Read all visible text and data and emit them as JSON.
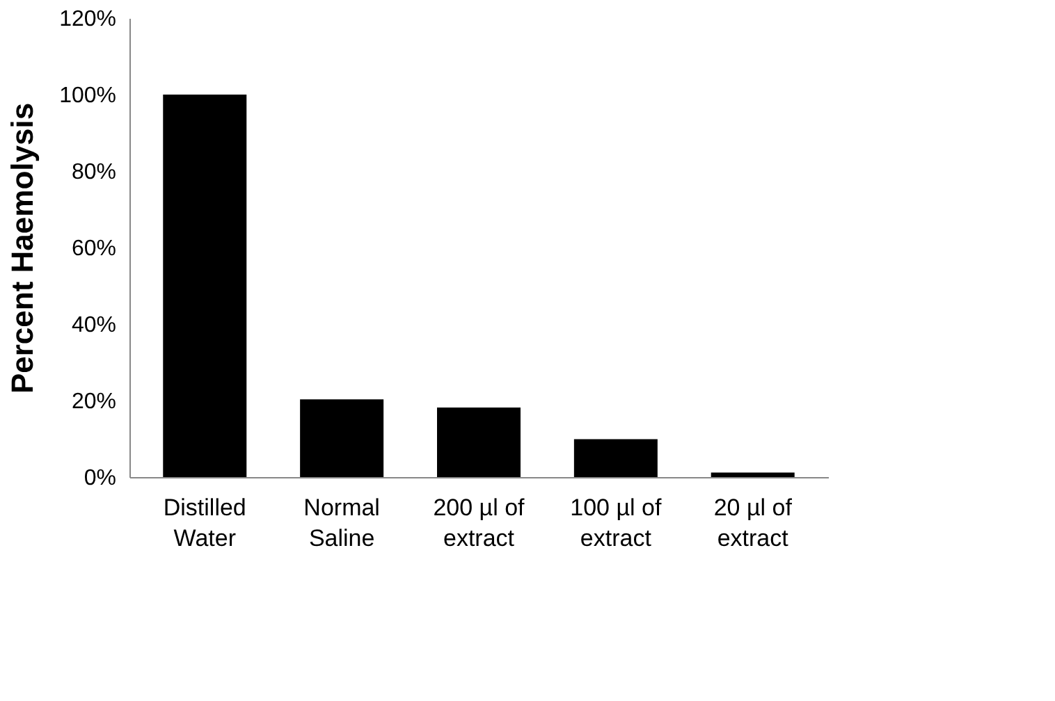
{
  "chart_data": {
    "type": "bar",
    "ylabel": "Percent Haemolysis",
    "categories": [
      "Distilled Water",
      "Normal Saline",
      "200 µl of extract",
      "100 µl of extract",
      "20 µl of extract"
    ],
    "values": [
      100,
      20.3,
      18.2,
      9.9,
      1.2
    ],
    "color": "#000000",
    "ylim": [
      0,
      120
    ],
    "yticks": [
      {
        "value": 0,
        "label": "0%"
      },
      {
        "value": 20,
        "label": "20%"
      },
      {
        "value": 40,
        "label": "40%"
      },
      {
        "value": 60,
        "label": "60%"
      },
      {
        "value": 80,
        "label": "80%"
      },
      {
        "value": 100,
        "label": "100%"
      },
      {
        "value": 120,
        "label": "120%"
      }
    ],
    "grid": false
  }
}
